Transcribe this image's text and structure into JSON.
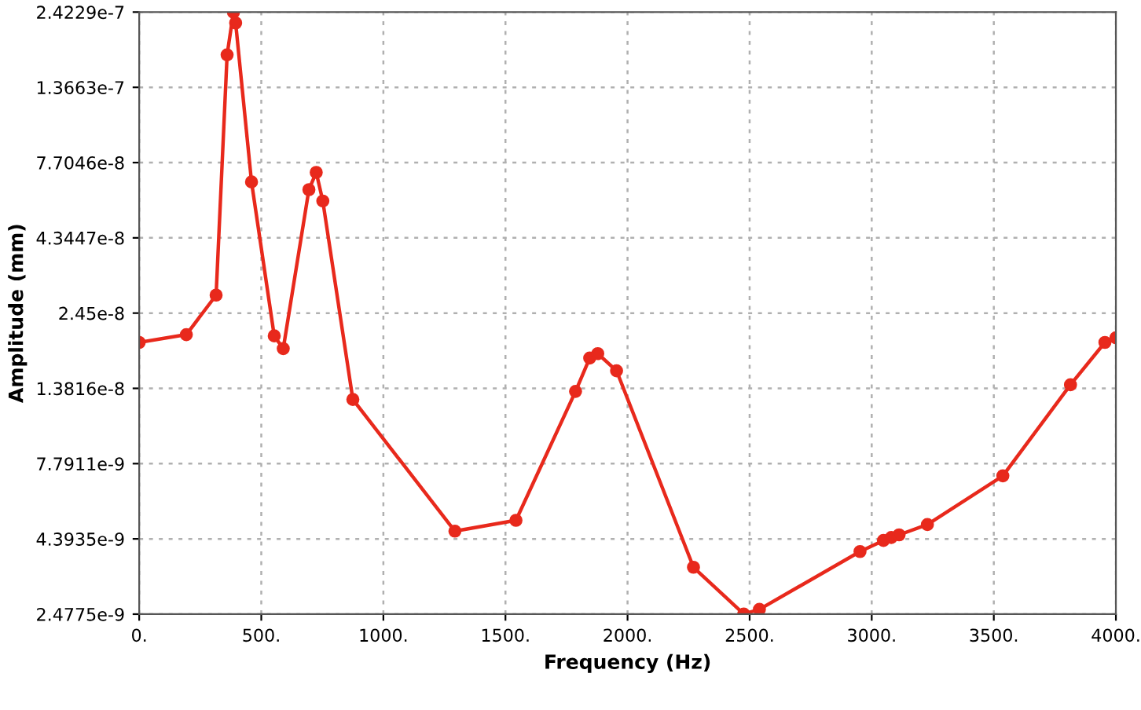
{
  "chart_data": {
    "type": "line",
    "xlabel": "Frequency (Hz)",
    "ylabel": "Amplitude (mm)",
    "log": "y",
    "grid": true,
    "marker": "circle",
    "line_style": "solid",
    "xlim": [
      0,
      4000
    ],
    "xticks": [
      {
        "value": 0,
        "label": "0."
      },
      {
        "value": 500,
        "label": "500."
      },
      {
        "value": 1000,
        "label": "1000."
      },
      {
        "value": 1500,
        "label": "1500."
      },
      {
        "value": 2000,
        "label": "2000."
      },
      {
        "value": 2500,
        "label": "2500."
      },
      {
        "value": 3000,
        "label": "3000."
      },
      {
        "value": 3500,
        "label": "3500."
      },
      {
        "value": 4000,
        "label": "4000."
      }
    ],
    "ylim": [
      2.4775e-09,
      2.4229e-07
    ],
    "yticks": [
      {
        "value": 2.4775e-09,
        "label": "2.4775e-9"
      },
      {
        "value": 4.3935e-09,
        "label": "4.3935e-9"
      },
      {
        "value": 7.7911e-09,
        "label": "7.7911e-9"
      },
      {
        "value": 1.3816e-08,
        "label": "1.3816e-8"
      },
      {
        "value": 2.45e-08,
        "label": "2.45e-8"
      },
      {
        "value": 4.3447e-08,
        "label": "4.3447e-8"
      },
      {
        "value": 7.7046e-08,
        "label": "7.7046e-8"
      },
      {
        "value": 1.3663e-07,
        "label": "1.3663e-7"
      },
      {
        "value": 2.4229e-07,
        "label": "2.4229e-7"
      }
    ],
    "x": [
      0,
      193,
      315,
      360,
      386,
      395,
      460,
      553,
      590,
      695,
      725,
      752,
      875,
      1293,
      1543,
      1787,
      1845,
      1878,
      1955,
      2270,
      2476,
      2540,
      2952,
      3048,
      3080,
      3112,
      3228,
      3537,
      3814,
      3955,
      4000
    ],
    "series": [
      {
        "color": "#e8291c",
        "values": [
          1.96e-08,
          2.08e-08,
          2.81e-08,
          1.75e-07,
          2.42e-07,
          2.23e-07,
          6.65e-08,
          2.06e-08,
          1.87e-08,
          6.27e-08,
          7.15e-08,
          5.75e-08,
          1.27e-08,
          4.66e-09,
          5.06e-09,
          1.35e-08,
          1.74e-08,
          1.8e-08,
          1.58e-08,
          3.54e-09,
          2.48e-09,
          2.57e-09,
          3.99e-09,
          4.34e-09,
          4.44e-09,
          4.53e-09,
          4.9e-09,
          7.1e-09,
          1.42e-08,
          1.96e-08,
          2.03e-08
        ]
      }
    ]
  }
}
